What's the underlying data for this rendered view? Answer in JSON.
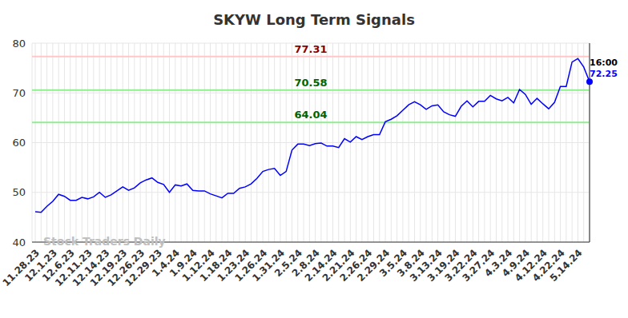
{
  "chart_data": {
    "type": "line",
    "title": "SKYW Long Term Signals",
    "watermark": "Stock Traders Daily",
    "categories": [
      "11.28.23",
      null,
      null,
      "12.1.23",
      null,
      null,
      "12.6.23",
      null,
      null,
      "12.11.23",
      null,
      null,
      "12.14.23",
      null,
      null,
      "12.19.23",
      null,
      null,
      "12.26.23",
      null,
      null,
      "12.29.23",
      null,
      null,
      "1.4.24",
      null,
      null,
      "1.9.24",
      null,
      null,
      "1.12.24",
      null,
      null,
      "1.18.24",
      null,
      null,
      "1.23.24",
      null,
      null,
      "1.26.24",
      null,
      null,
      "1.31.24",
      null,
      null,
      "2.5.24",
      null,
      null,
      "2.8.24",
      null,
      null,
      "2.14.24",
      null,
      null,
      "2.21.24",
      null,
      null,
      "2.26.24",
      null,
      null,
      "2.29.24",
      null,
      null,
      "3.5.24",
      null,
      null,
      "3.8.24",
      null,
      null,
      "3.13.24",
      null,
      null,
      "3.19.24",
      null,
      null,
      "3.22.24",
      null,
      null,
      "3.27.24",
      null,
      null,
      "4.3.24",
      null,
      null,
      "4.9.24",
      null,
      null,
      "4.12.24",
      null,
      null,
      "4.22.24",
      null,
      null,
      "5.14.24",
      null,
      null
    ],
    "values": [
      46.1,
      46.0,
      47.2,
      48.2,
      49.6,
      49.2,
      48.4,
      48.4,
      49.0,
      48.7,
      49.1,
      50.0,
      49.0,
      49.5,
      50.3,
      51.1,
      50.4,
      50.9,
      51.9,
      52.5,
      52.9,
      52.0,
      51.6,
      50.0,
      51.5,
      51.3,
      51.7,
      50.4,
      50.3,
      50.3,
      49.7,
      49.3,
      48.9,
      49.8,
      49.8,
      50.8,
      51.1,
      51.7,
      52.8,
      54.2,
      54.6,
      54.8,
      53.4,
      54.2,
      58.5,
      59.7,
      59.7,
      59.4,
      59.8,
      59.9,
      59.3,
      59.3,
      59.0,
      60.8,
      60.1,
      61.2,
      60.6,
      61.2,
      61.6,
      61.6,
      64.2,
      64.7,
      65.4,
      66.5,
      67.6,
      68.2,
      67.6,
      66.7,
      67.4,
      67.6,
      66.2,
      65.6,
      65.3,
      67.3,
      68.4,
      67.2,
      68.3,
      68.3,
      69.5,
      68.8,
      68.4,
      69.1,
      68.0,
      70.7,
      69.7,
      67.7,
      68.9,
      67.8,
      66.8,
      68.1,
      71.3,
      71.3,
      76.2,
      76.9,
      75.2,
      72.25
    ],
    "color": "#0000ff",
    "ylim": [
      40,
      80
    ],
    "yticks": [
      40,
      50,
      60,
      70,
      80
    ],
    "grid": true,
    "reference_lines": [
      {
        "value": 77.31,
        "label": "77.31",
        "color": "#8b0000"
      },
      {
        "value": 70.58,
        "label": "70.58",
        "color": "#006400"
      },
      {
        "value": 64.04,
        "label": "64.04",
        "color": "#006400"
      }
    ],
    "last_point_label": {
      "time": "16:00",
      "value_label": "72.25"
    }
  }
}
